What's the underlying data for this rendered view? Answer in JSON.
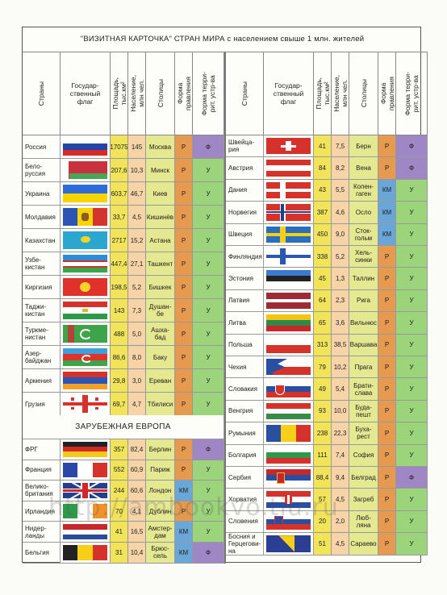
{
  "title": "\"ВИЗИТНАЯ КАРТОЧКА\" СТРАН МИРА с населением свыше 1 млн. жителей",
  "headers": {
    "country": "Страны",
    "flag": "Государ-\nственный\nфлаг",
    "area": "Площадь,\nтыс.км²",
    "population": "Население,\nмлн чел.",
    "capital": "Столицы",
    "gov_form": "Форма\nправления",
    "terr_form": "Форма терри-\nрит. устр-ва"
  },
  "section_banner": "ЗАРУБЕЖНАЯ ЕВРОПА",
  "watermark": "http://ambookvo.tiu.ru",
  "colors": {
    "area": "#f2e45a",
    "population": "#f6d4a8",
    "capital": "#e4e890",
    "form": "#e59a50",
    "terr_federal": "#9f86c4",
    "terr_unitary": "#9bd47a"
  },
  "left_rows": [
    {
      "country": "Россия",
      "flag": "russia",
      "area": "17075",
      "population": "145",
      "capital": "Москва",
      "gov": "Р",
      "terr": "Ф"
    },
    {
      "country": "Бело-\nруссия",
      "flag": "belarus",
      "area": "207,6",
      "population": "10,3",
      "capital": "Минск",
      "gov": "Р",
      "terr": "У"
    },
    {
      "country": "Украина",
      "flag": "ukraine",
      "area": "603,7",
      "population": "46,7",
      "capital": "Киев",
      "gov": "Р",
      "terr": "У"
    },
    {
      "country": "Молдавия",
      "flag": "moldova",
      "area": "33,7",
      "population": "4,5",
      "capital": "Кишинёв",
      "gov": "Р",
      "terr": "У"
    },
    {
      "country": "Казахстан",
      "flag": "kazakhstan",
      "area": "2717",
      "population": "15,2",
      "capital": "Астана",
      "gov": "Р",
      "terr": "У"
    },
    {
      "country": "Узбе-\nкистан",
      "flag": "uzbekistan",
      "area": "447,4",
      "population": "27,1",
      "capital": "Ташкент",
      "gov": "Р",
      "terr": "У"
    },
    {
      "country": "Киргизия",
      "flag": "kyrgyzstan",
      "area": "198,5",
      "population": "5,2",
      "capital": "Бишкек",
      "gov": "Р",
      "terr": "У"
    },
    {
      "country": "Таджи-\nкистан",
      "flag": "tajikistan",
      "area": "143",
      "population": "7,3",
      "capital": "Душан-\nбе",
      "gov": "Р",
      "terr": "У"
    },
    {
      "country": "Туркме-\nнистан",
      "flag": "turkmenistan",
      "area": "488",
      "population": "5,0",
      "capital": "Ашха-\nбад",
      "gov": "Р",
      "terr": "У"
    },
    {
      "country": "Азер-\nбайджан",
      "flag": "azerbaijan",
      "area": "86,6",
      "population": "8,0",
      "capital": "Баку",
      "gov": "Р",
      "terr": "У"
    },
    {
      "country": "Армения",
      "flag": "armenia",
      "area": "29,8",
      "population": "3,0",
      "capital": "Ереван",
      "gov": "Р",
      "terr": "У"
    },
    {
      "country": "Грузия",
      "flag": "georgia",
      "area": "69,7",
      "population": "4,7",
      "capital": "Тбилиси",
      "gov": "Р",
      "terr": "У"
    }
  ],
  "left_rows2": [
    {
      "country": "ФРГ",
      "flag": "germany",
      "area": "357",
      "population": "82,4",
      "capital": "Берлин",
      "gov": "Р",
      "terr": "Ф"
    },
    {
      "country": "Франция",
      "flag": "france",
      "area": "552",
      "population": "60,9",
      "capital": "Париж",
      "gov": "Р",
      "terr": "У"
    },
    {
      "country": "Велико-\nбритания",
      "flag": "uk",
      "area": "244",
      "population": "60,6",
      "capital": "Лондон",
      "gov": "КМ",
      "terr": "У"
    },
    {
      "country": "Ирландия",
      "flag": "ireland",
      "area": "70",
      "population": "4,1",
      "capital": "Дублин",
      "gov": "Р",
      "terr": "У"
    },
    {
      "country": "Нидер-\nланды",
      "flag": "netherlands",
      "area": "41",
      "population": "16,5",
      "capital": "Амстер-\nдам",
      "gov": "КМ",
      "terr": "У"
    },
    {
      "country": "Бельгия",
      "flag": "belgium",
      "area": "31",
      "population": "10,4",
      "capital": "Брюс-\nсель",
      "gov": "КМ",
      "terr": "Ф"
    }
  ],
  "right_rows": [
    {
      "country": "Швейца-\nрия",
      "flag": "switzerland",
      "area": "41",
      "population": "7,5",
      "capital": "Берн",
      "gov": "Р",
      "terr": "Ф"
    },
    {
      "country": "Австрия",
      "flag": "austria",
      "area": "84",
      "population": "8,2",
      "capital": "Вена",
      "gov": "Р",
      "terr": "Ф"
    },
    {
      "country": "Дания",
      "flag": "denmark",
      "area": "43",
      "population": "5,5",
      "capital": "Копен-\nгаген",
      "gov": "КМ",
      "terr": "У"
    },
    {
      "country": "Норвегия",
      "flag": "norway",
      "area": "387",
      "population": "4,6",
      "capital": "Осло",
      "gov": "КМ",
      "terr": "У"
    },
    {
      "country": "Швеция",
      "flag": "sweden",
      "area": "450",
      "population": "9,0",
      "capital": "Сток-\nгольм",
      "gov": "КМ",
      "terr": "У"
    },
    {
      "country": "Финляндия",
      "flag": "finland",
      "area": "338",
      "population": "5,2",
      "capital": "Хель-\nсинки",
      "gov": "Р",
      "terr": "У"
    },
    {
      "country": "Эстония",
      "flag": "estonia",
      "area": "45",
      "population": "1,3",
      "capital": "Таллин",
      "gov": "Р",
      "terr": "У"
    },
    {
      "country": "Латвия",
      "flag": "latvia",
      "area": "64",
      "population": "2,3",
      "capital": "Рига",
      "gov": "Р",
      "terr": "У"
    },
    {
      "country": "Литва",
      "flag": "lithuania",
      "area": "65",
      "population": "3,6",
      "capital": "Вильнюс",
      "gov": "Р",
      "terr": "У"
    },
    {
      "country": "Польша",
      "flag": "poland",
      "area": "313",
      "population": "38,5",
      "capital": "Варшава",
      "gov": "Р",
      "terr": "У"
    },
    {
      "country": "Чехия",
      "flag": "czech",
      "area": "79",
      "population": "10,2",
      "capital": "Прага",
      "gov": "Р",
      "terr": "У"
    },
    {
      "country": "Словакия",
      "flag": "slovakia",
      "area": "49",
      "population": "5,4",
      "capital": "Брати-\nслава",
      "gov": "Р",
      "terr": "У"
    },
    {
      "country": "Венгрия",
      "flag": "hungary",
      "area": "93",
      "population": "10,0",
      "capital": "Буда-\nпешт",
      "gov": "Р",
      "terr": "У"
    },
    {
      "country": "Румыния",
      "flag": "romania",
      "area": "238",
      "population": "22,3",
      "capital": "Буха-\nрест",
      "gov": "Р",
      "terr": "У"
    },
    {
      "country": "Болгария",
      "flag": "bulgaria",
      "area": "111",
      "population": "7,4",
      "capital": "София",
      "gov": "Р",
      "terr": "У"
    },
    {
      "country": "Сербия",
      "flag": "serbia",
      "area": "88,4",
      "population": "9,4",
      "capital": "Белград",
      "gov": "Р",
      "terr": "Ф"
    },
    {
      "country": "Хорватия",
      "flag": "croatia",
      "area": "57",
      "population": "4,5",
      "capital": "Загреб",
      "gov": "Р",
      "terr": "У"
    },
    {
      "country": "Словения",
      "flag": "slovenia",
      "area": "20",
      "population": "2,0",
      "capital": "Люб-\nляна",
      "gov": "Р",
      "terr": "У"
    },
    {
      "country": "Босния и\nГерцегови-\nна",
      "flag": "bosnia",
      "area": "51",
      "population": "4,5",
      "capital": "Сараево",
      "gov": "Р",
      "terr": "У"
    }
  ]
}
